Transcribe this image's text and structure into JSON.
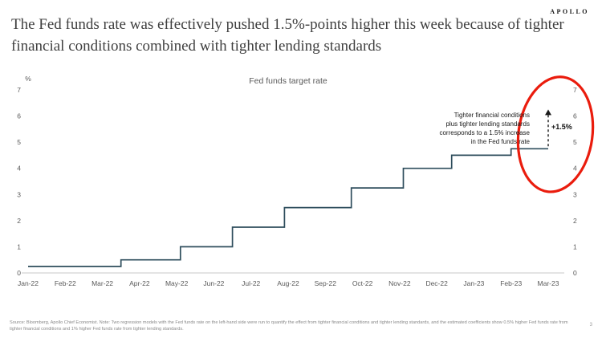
{
  "header": {
    "logo": "APOLLO",
    "title": "The Fed funds rate was effectively pushed 1.5%-points higher this week because of tighter financial conditions combined with tighter lending standards"
  },
  "chart_data": {
    "type": "line",
    "subtype": "step",
    "title": "Fed funds target rate",
    "ylabel": "%",
    "ylim": [
      0,
      7
    ],
    "yticks": [
      0,
      1,
      2,
      3,
      4,
      5,
      6,
      7
    ],
    "grid": false,
    "legend_position": "none",
    "x_categories": [
      "Jan-22",
      "Feb-22",
      "Mar-22",
      "Apr-22",
      "May-22",
      "Jun-22",
      "Jul-22",
      "Aug-22",
      "Sep-22",
      "Oct-22",
      "Nov-22",
      "Dec-22",
      "Jan-23",
      "Feb-23",
      "Mar-23"
    ],
    "series": [
      {
        "name": "Fed funds target rate",
        "color": "#2e4d5c",
        "step_points": [
          [
            0,
            0.25
          ],
          [
            2.5,
            0.25
          ],
          [
            2.5,
            0.5
          ],
          [
            4.1,
            0.5
          ],
          [
            4.1,
            1.0
          ],
          [
            5.5,
            1.0
          ],
          [
            5.5,
            1.75
          ],
          [
            6.9,
            1.75
          ],
          [
            6.9,
            2.5
          ],
          [
            8.7,
            2.5
          ],
          [
            8.7,
            3.25
          ],
          [
            10.1,
            3.25
          ],
          [
            10.1,
            4.0
          ],
          [
            11.4,
            4.0
          ],
          [
            11.4,
            4.5
          ],
          [
            13.0,
            4.5
          ],
          [
            13.0,
            4.75
          ],
          [
            14,
            4.75
          ]
        ]
      }
    ],
    "arrow": {
      "x": 14,
      "from": 4.75,
      "to": 6.25,
      "label": "+1.5%",
      "color": "#1a1a1a"
    },
    "annotation_lines": [
      "Tighter financial conditions",
      "plus tighter lending standards",
      "corresponds to a 1.5% increase",
      "in the Fed funds rate"
    ],
    "highlight_circle_color": "#ea1c0d",
    "axis_text_color": "#595959",
    "baseline_color": "#c9c9c9"
  },
  "footer": {
    "note": "Source: Bloomberg, Apollo Chief Economist. Note: Two regression models with the Fed funds rate on the left-hand side were run to quantify the effect from tighter financial conditions and tighter lending standards, and the estimated coefficients show 0.5% higher Fed funds rate from tighter financial conditions and 1% higher Fed funds rate from tighter lending standards.",
    "page": "3"
  }
}
